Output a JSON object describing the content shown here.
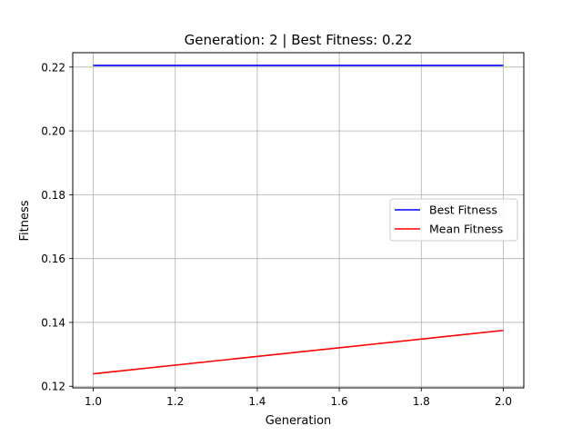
{
  "chart_data": {
    "type": "line",
    "title": "Generation: 2 | Best Fitness: 0.22",
    "xlabel": "Generation",
    "ylabel": "Fitness",
    "xlim": [
      0.95,
      2.05
    ],
    "ylim": [
      0.1195,
      0.2245
    ],
    "xticks": [
      1.0,
      1.2,
      1.4,
      1.6,
      1.8,
      2.0
    ],
    "xtick_labels": [
      "1.0",
      "1.2",
      "1.4",
      "1.6",
      "1.8",
      "2.0"
    ],
    "yticks": [
      0.12,
      0.14,
      0.16,
      0.18,
      0.2,
      0.22
    ],
    "ytick_labels": [
      "0.12",
      "0.14",
      "0.16",
      "0.18",
      "0.20",
      "0.22"
    ],
    "grid": true,
    "legend_position": "center-right",
    "x": [
      1,
      2
    ],
    "series": [
      {
        "name": "Best Fitness",
        "color": "#0000ff",
        "values": [
          0.2205,
          0.2205
        ]
      },
      {
        "name": "Mean Fitness",
        "color": "#ff0000",
        "values": [
          0.1239,
          0.1375
        ]
      }
    ]
  }
}
